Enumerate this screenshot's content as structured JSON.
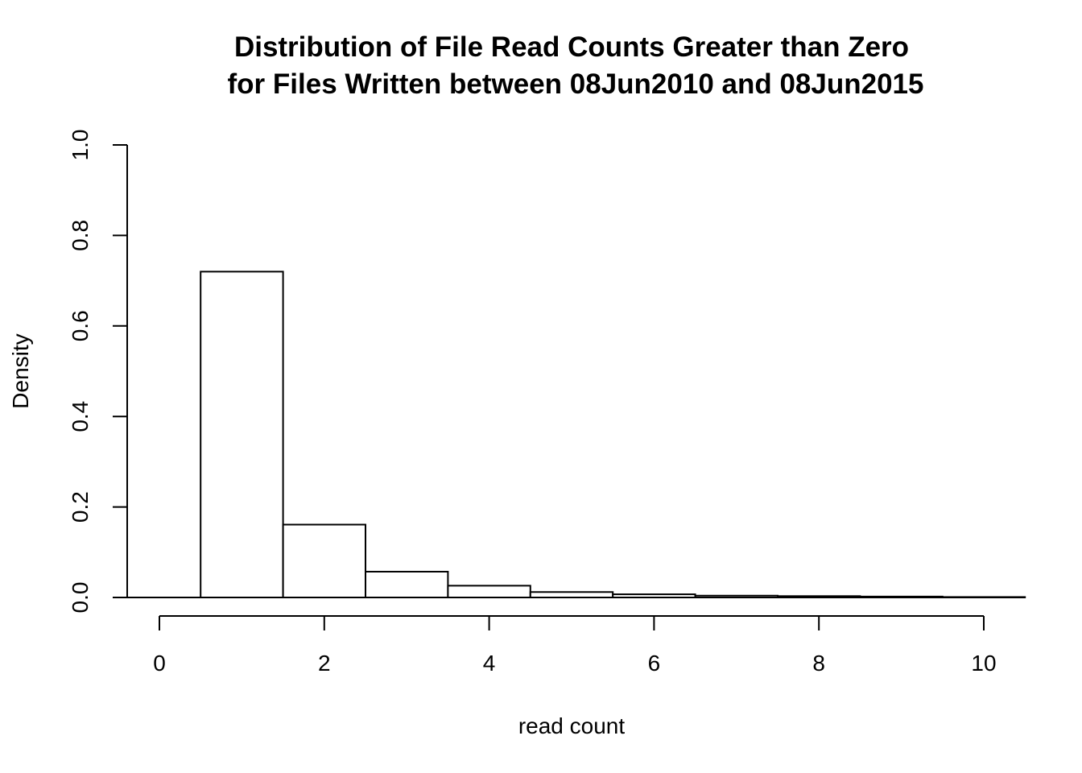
{
  "chart_data": {
    "type": "bar",
    "title": [
      "Distribution of File Read Counts Greater than Zero",
      "for Files Written between 08Jun2010 and 08Jun2015"
    ],
    "xlabel": "read count",
    "ylabel": "Density",
    "xlim": [
      0,
      10.4
    ],
    "ylim": [
      0,
      1.0
    ],
    "x_ticks": [
      0,
      2,
      4,
      6,
      8,
      10
    ],
    "y_ticks": [
      0.0,
      0.2,
      0.4,
      0.6,
      0.8,
      1.0
    ],
    "y_tick_labels": [
      "0.0",
      "0.2",
      "0.4",
      "0.6",
      "0.8",
      "1.0"
    ],
    "bin_width": 1,
    "bars": [
      {
        "x": 1,
        "value": 0.72
      },
      {
        "x": 2,
        "value": 0.161
      },
      {
        "x": 3,
        "value": 0.057
      },
      {
        "x": 4,
        "value": 0.026
      },
      {
        "x": 5,
        "value": 0.012
      },
      {
        "x": 6,
        "value": 0.007
      },
      {
        "x": 7,
        "value": 0.004
      },
      {
        "x": 8,
        "value": 0.003
      },
      {
        "x": 9,
        "value": 0.002
      },
      {
        "x": 10,
        "value": 0.001
      }
    ],
    "grid": false
  }
}
